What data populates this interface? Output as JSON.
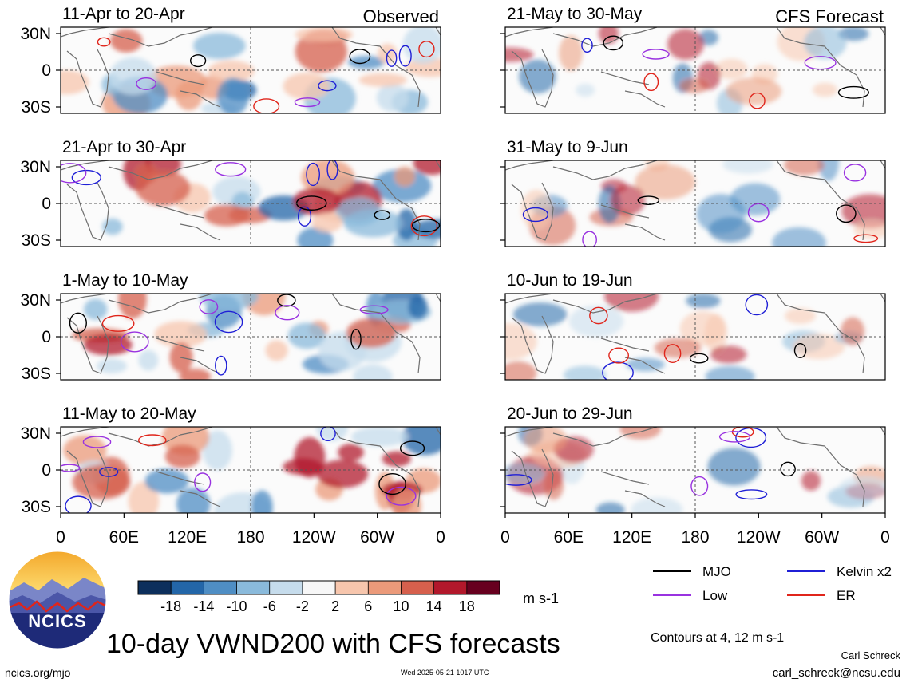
{
  "panels": [
    {
      "date_range": "11-Apr to 20-Apr",
      "label": "Observed"
    },
    {
      "date_range": "21-Apr to 30-Apr",
      "label": ""
    },
    {
      "date_range": "1-May to 10-May",
      "label": ""
    },
    {
      "date_range": "11-May to 20-May",
      "label": ""
    },
    {
      "date_range": "21-May to 30-May",
      "label": "CFS Forecast"
    },
    {
      "date_range": "31-May to 9-Jun",
      "label": ""
    },
    {
      "date_range": "10-Jun to 19-Jun",
      "label": ""
    },
    {
      "date_range": "20-Jun to 29-Jun",
      "label": ""
    }
  ],
  "y_ticks": [
    "30N",
    "0",
    "30S"
  ],
  "x_ticks": [
    "0",
    "60E",
    "120E",
    "180",
    "120W",
    "60W",
    "0"
  ],
  "colorbar": {
    "ticks": [
      "-18",
      "-14",
      "-10",
      "-6",
      "-2",
      "2",
      "6",
      "10",
      "14",
      "18"
    ],
    "unit": "m s-1",
    "colors": [
      "#0c2f5c",
      "#2366a8",
      "#4f8ec4",
      "#8abadb",
      "#c6dcec",
      "#f7f7f7",
      "#f7c6ad",
      "#eb9a7a",
      "#d6604d",
      "#b2182b",
      "#67001f"
    ]
  },
  "legend": [
    {
      "name": "MJO",
      "color": "#000000"
    },
    {
      "name": "Kelvin x2",
      "color": "#1f1fd6"
    },
    {
      "name": "Low",
      "color": "#9932e0"
    },
    {
      "name": "ER",
      "color": "#e0251b"
    }
  ],
  "logo_text": "NCICS",
  "title": "10-day VWND200 with CFS forecasts",
  "contour_note": "Contours at 4, 12 m s-1",
  "author": "Carl Schreck",
  "email": "carl_schreck@ncsu.edu",
  "website": "ncics.org/mjo",
  "timestamp": "Wed 2025-05-21 1017 UTC"
}
